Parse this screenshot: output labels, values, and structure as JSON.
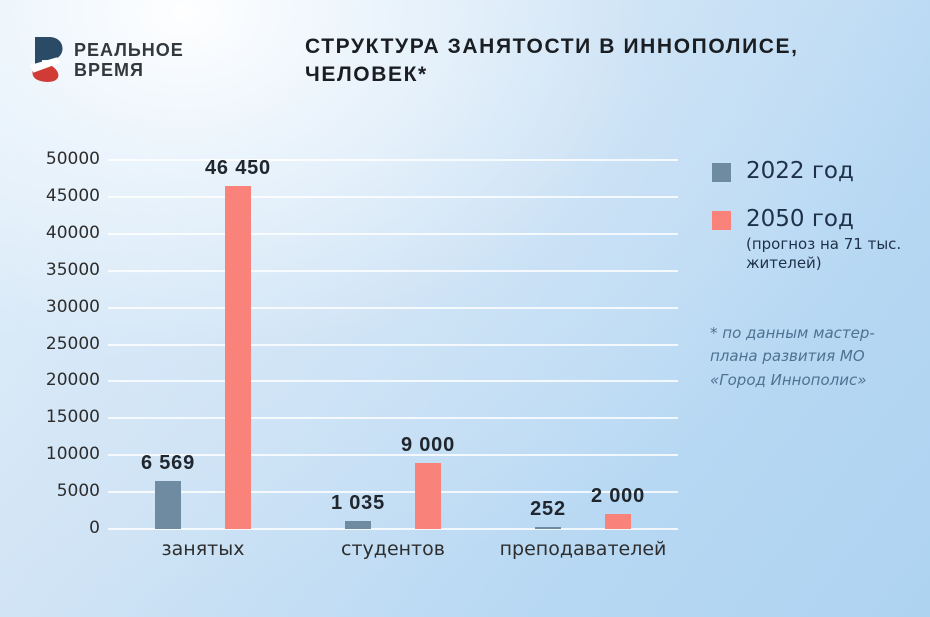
{
  "brand": {
    "name_line1": "РЕАЛЬНОЕ",
    "name_line2": "ВРЕМЯ",
    "logo_blue": "#2a4a66",
    "logo_red": "#d03c35"
  },
  "header": {
    "title_line1": "СТРУКТУРА ЗАНЯТОСТИ В ИННОПОЛИСЕ,",
    "title_line2": "ЧЕЛОВЕК*"
  },
  "chart_data": {
    "type": "bar",
    "categories": [
      "занятых",
      "студентов",
      "преподавателей"
    ],
    "series": [
      {
        "name": "2022 год",
        "subtitle": "",
        "color": "#6f8ba2",
        "values": [
          6569,
          1035,
          252
        ],
        "labels": [
          "6 569",
          "1 035",
          "252"
        ]
      },
      {
        "name": "2050 год",
        "subtitle": "(прогноз на 71 тыс. жителей)",
        "color": "#f9837b",
        "values": [
          46450,
          9000,
          2000
        ],
        "labels": [
          "46 450",
          "9 000",
          "2 000"
        ]
      }
    ],
    "title": "СТРУКТУРА ЗАНЯТОСТИ В ИННОПОЛИСЕ, ЧЕЛОВЕК*",
    "xlabel": "",
    "ylabel": "",
    "ylim": [
      0,
      50000
    ],
    "ytick_step": 5000,
    "grid": true,
    "legend_position": "right"
  },
  "footnote": {
    "text": "* по данным мастер-плана развития МО «Город Иннополис»"
  }
}
